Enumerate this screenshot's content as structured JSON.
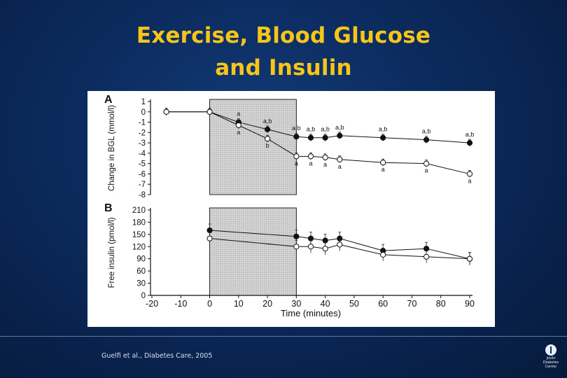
{
  "slide": {
    "title_line1": "Exercise, Blood Glucose",
    "title_line2": "and Insulin",
    "citation": "Guelfi et al., Diabetes Care, 2005",
    "logo_line1": "Joslin",
    "logo_line2": "Diabetes",
    "logo_line3": "Center"
  },
  "chart_data": [
    {
      "type": "line",
      "panel_label": "A",
      "ylabel": "Change in BGL (mmol/l)",
      "xlabel": "",
      "xlim": [
        -20,
        90
      ],
      "ylim": [
        -8,
        1
      ],
      "yticks": [
        1,
        0,
        -1,
        -2,
        -3,
        -4,
        -5,
        -6,
        -7,
        -8
      ],
      "exercise_period": [
        0,
        30
      ],
      "x": [
        -15,
        0,
        10,
        20,
        30,
        35,
        40,
        45,
        60,
        75,
        90
      ],
      "series": [
        {
          "marker": "filled",
          "values": [
            0,
            0,
            -1.0,
            -1.7,
            -2.4,
            -2.5,
            -2.5,
            -2.3,
            -2.5,
            -2.7,
            -3.0
          ],
          "annotations": [
            "",
            "",
            "a",
            "a,b",
            "a,b",
            "a,b",
            "a,b",
            "a,b",
            "a,b",
            "a,b",
            "a,b"
          ]
        },
        {
          "marker": "open",
          "values": [
            0,
            0,
            -1.3,
            -2.6,
            -4.3,
            -4.3,
            -4.4,
            -4.6,
            -4.9,
            -5.0,
            -6.0
          ],
          "annotations": [
            "",
            "",
            "a",
            "b",
            "a",
            "a",
            "a",
            "a",
            "a",
            "a",
            "a"
          ]
        }
      ]
    },
    {
      "type": "line",
      "panel_label": "B",
      "ylabel": "Free insulin (pmol/l)",
      "xlabel": "Time (minutes)",
      "xlim": [
        -20,
        90
      ],
      "ylim": [
        0,
        210
      ],
      "yticks": [
        210,
        180,
        150,
        120,
        90,
        60,
        30,
        0
      ],
      "xticks": [
        -20,
        -10,
        0,
        10,
        20,
        30,
        40,
        50,
        60,
        70,
        80,
        90
      ],
      "exercise_period": [
        0,
        30
      ],
      "x": [
        0,
        30,
        35,
        40,
        45,
        60,
        75,
        90
      ],
      "series": [
        {
          "marker": "filled",
          "values": [
            160,
            145,
            140,
            135,
            140,
            110,
            115,
            90
          ]
        },
        {
          "marker": "open",
          "values": [
            140,
            120,
            120,
            115,
            125,
            100,
            95,
            90
          ]
        }
      ]
    }
  ]
}
